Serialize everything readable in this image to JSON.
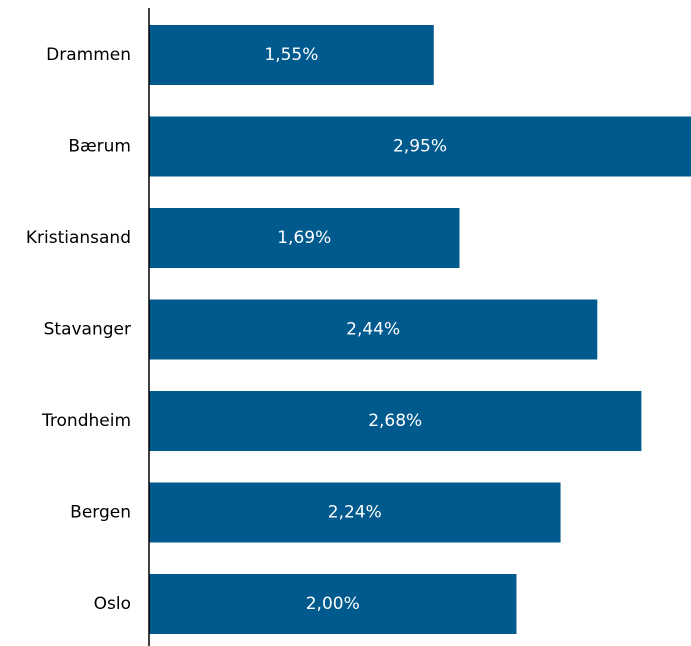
{
  "chart_data": {
    "type": "bar",
    "orientation": "horizontal",
    "categories": [
      "Drammen",
      "Bærum",
      "Kristiansand",
      "Stavanger",
      "Trondheim",
      "Bergen",
      "Oslo"
    ],
    "values": [
      1.55,
      2.95,
      1.69,
      2.44,
      2.68,
      2.24,
      2.0
    ],
    "data_labels": [
      "1,55%",
      "2,95%",
      "1,69%",
      "2,44%",
      "2,68%",
      "2,24%",
      "2,00%"
    ],
    "xlim": [
      0,
      2.95
    ],
    "grid": false,
    "legend": "none",
    "colors": {
      "bar": "#005a8e",
      "axis": "#000000",
      "label": "#000000",
      "data_label": "#ffffff"
    }
  }
}
